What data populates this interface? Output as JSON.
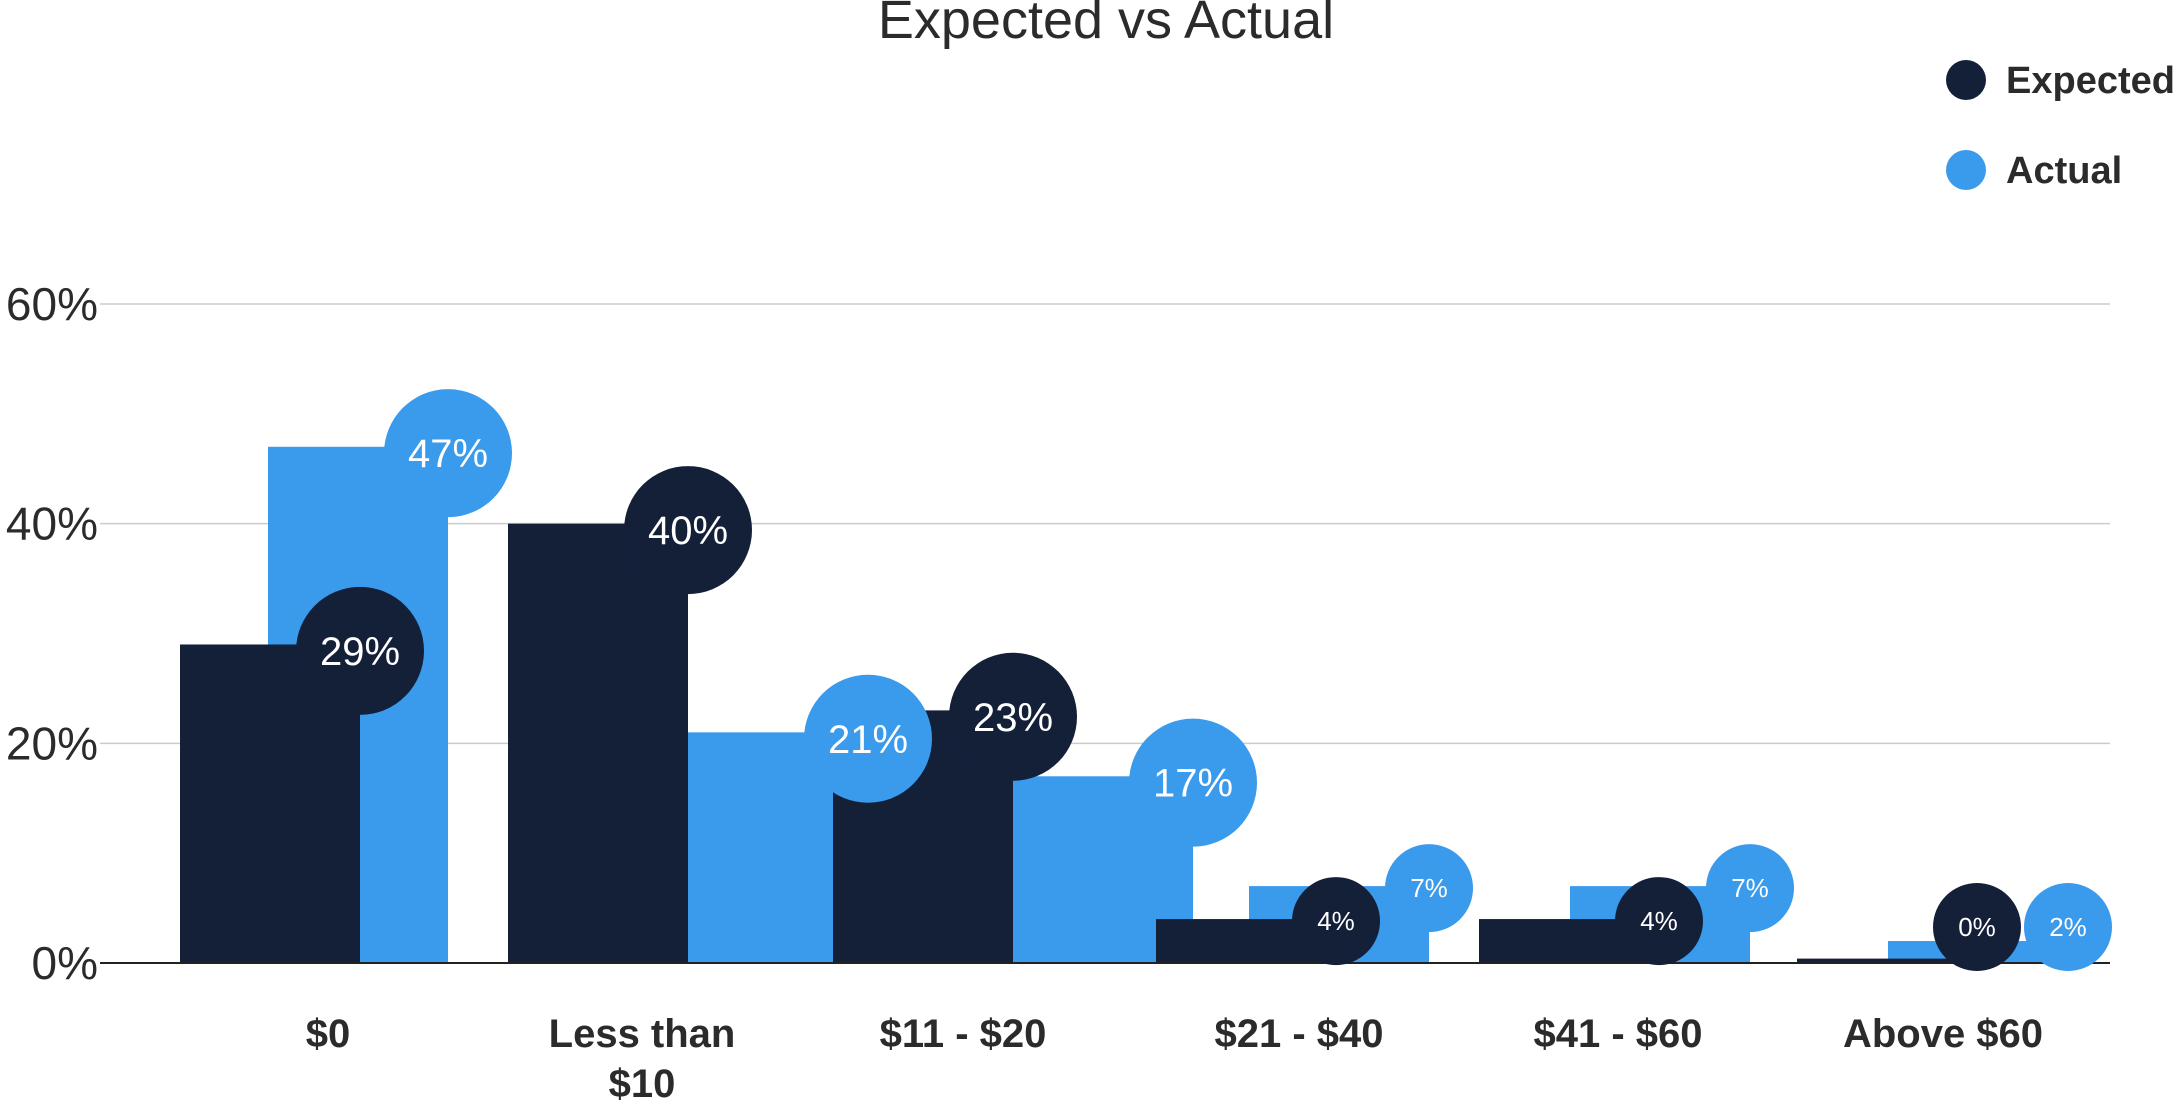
{
  "chart_data": {
    "type": "bar",
    "title": "Expected vs Actual",
    "categories": [
      "$0",
      "Less than $10",
      "$11 - $20",
      "$21 - $40",
      "$41 - $60",
      "Above $60"
    ],
    "series": [
      {
        "name": "Expected",
        "values": [
          29,
          40,
          23,
          4,
          4,
          0
        ],
        "labels": [
          "29%",
          "40%",
          "23%",
          "4%",
          "4%",
          "0%"
        ],
        "color": "#141f38"
      },
      {
        "name": "Actual",
        "values": [
          47,
          21,
          17,
          7,
          7,
          2
        ],
        "labels": [
          "47%",
          "21%",
          "17%",
          "7%",
          "7%",
          "2%"
        ],
        "color": "#3a9aec"
      }
    ],
    "y_ticks": [
      "0%",
      "20%",
      "40%",
      "60%"
    ],
    "ylim": [
      0,
      60
    ],
    "grid": true,
    "legend": "top-right"
  }
}
